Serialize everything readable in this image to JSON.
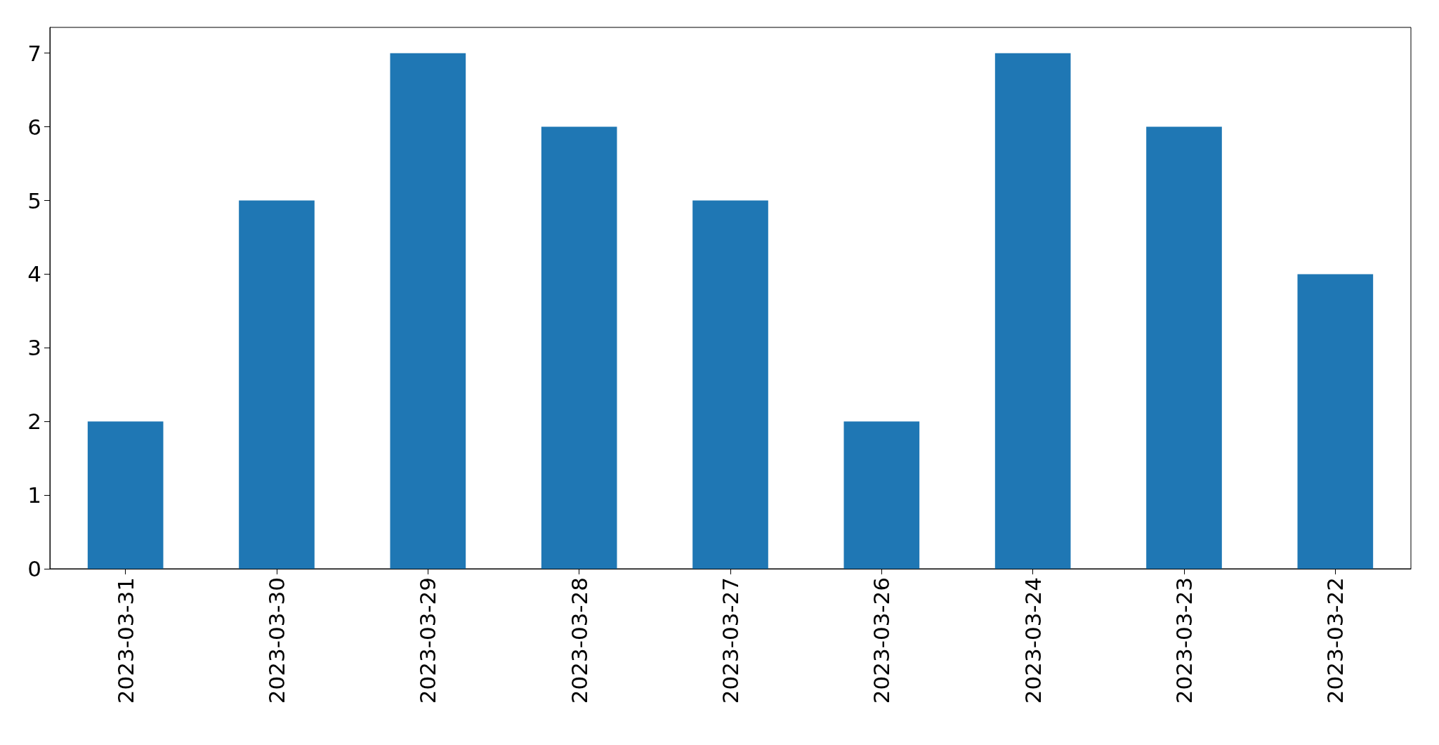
{
  "chart_data": {
    "type": "bar",
    "categories": [
      "2023-03-31",
      "2023-03-30",
      "2023-03-29",
      "2023-03-28",
      "2023-03-27",
      "2023-03-26",
      "2023-03-24",
      "2023-03-23",
      "2023-03-22"
    ],
    "values": [
      2,
      5,
      7,
      6,
      5,
      2,
      7,
      6,
      4
    ],
    "color": "#1f77b4",
    "ylim": [
      0,
      7.35
    ],
    "yticks": [
      0,
      1,
      2,
      3,
      4,
      5,
      6,
      7
    ],
    "grid": false
  }
}
